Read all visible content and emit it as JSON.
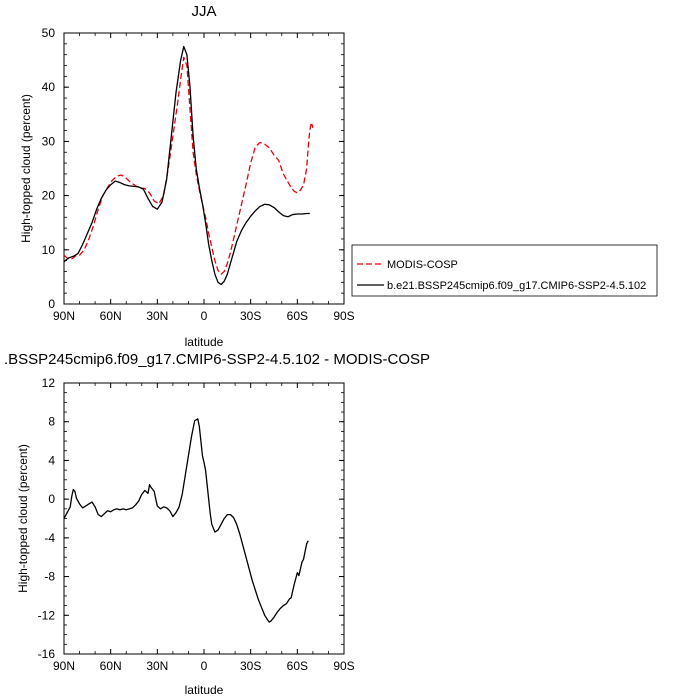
{
  "chart_data": [
    {
      "type": "line",
      "title": "JJA",
      "xlabel": "latitude",
      "ylabel": "High-topped cloud (percent)",
      "xlim": [
        90,
        -90
      ],
      "ylim": [
        0,
        50
      ],
      "x_ticks": [
        90,
        60,
        30,
        0,
        -30,
        -60,
        -90
      ],
      "x_tick_labels": [
        "90N",
        "60N",
        "30N",
        "0",
        "30S",
        "60S",
        "90S"
      ],
      "y_ticks": [
        0,
        10,
        20,
        30,
        40,
        50
      ],
      "y_tick_labels": [
        "0",
        "10",
        "20",
        "30",
        "40",
        "50"
      ],
      "legend_position": "right",
      "series": [
        {
          "name": "MODIS-COSP",
          "color": "#e8000b",
          "dash": "dashed",
          "x": [
            90,
            88,
            86,
            84,
            82,
            80,
            77,
            74,
            71,
            68,
            65,
            62,
            59,
            56,
            53,
            50,
            47,
            44,
            41,
            38,
            35,
            32,
            29,
            26,
            23,
            20,
            17,
            15,
            13,
            11,
            9,
            7,
            5,
            3,
            1,
            -1,
            -3,
            -5,
            -7,
            -9,
            -11,
            -13,
            -15,
            -17,
            -19,
            -21,
            -23,
            -25,
            -27,
            -30,
            -33,
            -36,
            -39,
            -42,
            -45,
            -48,
            -51,
            -54,
            -56,
            -58,
            -60,
            -62,
            -64,
            -66,
            -67,
            -68,
            -69,
            -70
          ],
          "y": [
            9,
            8.5,
            8.2,
            8.5,
            9,
            9,
            10,
            12,
            14.5,
            17.5,
            20,
            21.5,
            22.8,
            23.6,
            23.8,
            23.2,
            22.4,
            21.8,
            21.4,
            21.3,
            20.5,
            19,
            18.5,
            20,
            25,
            31,
            37,
            41.5,
            45.5,
            44,
            36,
            28,
            24,
            21,
            18.5,
            16,
            13,
            10.5,
            8,
            6.2,
            5.5,
            6,
            7.5,
            9.5,
            12,
            14.5,
            17,
            19.5,
            22,
            26,
            29,
            29.8,
            29.5,
            28.8,
            27.5,
            26.5,
            24,
            22.5,
            21.5,
            20.8,
            20.5,
            21,
            22,
            25,
            29,
            32,
            33.5,
            32.5
          ]
        },
        {
          "name": "b.e21.BSSP245cmip6.f09_g17.CMIP6-SSP2-4.5.102",
          "color": "#000000",
          "dash": "solid",
          "x": [
            90,
            87,
            84,
            81,
            78,
            75,
            72,
            69,
            66,
            63,
            60,
            57,
            54,
            51,
            48,
            45,
            42,
            39,
            36,
            33,
            30,
            27,
            24,
            21,
            18,
            15,
            13,
            11,
            9,
            7,
            5,
            3,
            1,
            -1,
            -3,
            -5,
            -7,
            -9,
            -11,
            -13,
            -15,
            -17,
            -19,
            -21,
            -24,
            -27,
            -30,
            -33,
            -36,
            -39,
            -42,
            -45,
            -48,
            -51,
            -54,
            -57,
            -60,
            -63,
            -66,
            -68
          ],
          "y": [
            7.8,
            8.5,
            8.8,
            9.3,
            11,
            13,
            15,
            17.5,
            19.5,
            21,
            22,
            22.7,
            22.4,
            22,
            21.8,
            21.7,
            21.6,
            21.2,
            19.5,
            18,
            17.5,
            18.8,
            23,
            31,
            39,
            45,
            47.5,
            46,
            40,
            31,
            25,
            21.5,
            18.5,
            15,
            11,
            8,
            5.5,
            4,
            3.6,
            4.2,
            5.5,
            7.5,
            9.5,
            11.5,
            13.5,
            15,
            16.2,
            17.2,
            18,
            18.4,
            18.3,
            17.8,
            17,
            16.3,
            16.1,
            16.5,
            16.6,
            16.6,
            16.7,
            16.7
          ]
        }
      ]
    },
    {
      "type": "line",
      "title": ".BSSP245cmip6.f09_g17.CMIP6-SSP2-4.5.102 - MODIS-COSP",
      "xlabel": "latitude",
      "ylabel": "High-topped cloud (percent)",
      "xlim": [
        90,
        -90
      ],
      "ylim": [
        -16,
        12
      ],
      "x_ticks": [
        90,
        60,
        30,
        0,
        -30,
        -60,
        -90
      ],
      "x_tick_labels": [
        "90N",
        "60N",
        "30N",
        "0",
        "30S",
        "60S",
        "90S"
      ],
      "y_ticks": [
        -16,
        -12,
        -8,
        -4,
        0,
        4,
        8,
        12
      ],
      "y_tick_labels": [
        "-16",
        "-12",
        "-8",
        "-4",
        "0",
        "4",
        "8",
        "12"
      ],
      "series": [
        {
          "color": "#000000",
          "dash": "solid",
          "x": [
            90,
            88,
            86,
            85,
            84,
            83,
            82,
            80,
            78,
            76,
            74,
            72,
            70,
            68,
            66,
            64,
            62,
            60,
            58,
            56,
            54,
            52,
            50,
            48,
            46,
            44,
            42,
            40,
            38,
            36,
            35,
            34,
            32,
            31,
            30,
            28,
            26,
            24,
            22,
            20,
            18,
            16,
            14,
            12,
            10,
            8,
            6,
            4,
            3,
            2,
            1,
            0,
            -1,
            -2,
            -3,
            -4,
            -5,
            -7,
            -9,
            -11,
            -13,
            -15,
            -17,
            -19,
            -21,
            -23,
            -25,
            -27,
            -29,
            -31,
            -33,
            -35,
            -37,
            -39,
            -41,
            -42,
            -43,
            -45,
            -47,
            -49,
            -51,
            -53,
            -55,
            -56,
            -57,
            -58,
            -59,
            -60,
            -61,
            -62,
            -63,
            -64,
            -65,
            -66,
            -67
          ],
          "y": [
            -2,
            -1.4,
            -0.8,
            0.3,
            1,
            0.8,
            0.1,
            -0.5,
            -0.9,
            -0.7,
            -0.5,
            -0.3,
            -0.8,
            -1.6,
            -1.8,
            -1.5,
            -1.2,
            -1.3,
            -1.1,
            -1.0,
            -1.1,
            -1.0,
            -1.1,
            -1.0,
            -0.9,
            -0.6,
            -0.2,
            0.5,
            0.9,
            0.6,
            1.5,
            1.2,
            0.8,
            0.0,
            -0.7,
            -1.0,
            -0.8,
            -0.9,
            -1.2,
            -1.8,
            -1.4,
            -0.8,
            0.5,
            2.5,
            4.5,
            6.5,
            8.1,
            8.3,
            7.5,
            6,
            4.5,
            3.8,
            3.0,
            1.5,
            0.0,
            -1.5,
            -2.6,
            -3.4,
            -3.2,
            -2.6,
            -2.0,
            -1.6,
            -1.6,
            -1.9,
            -2.6,
            -3.6,
            -4.8,
            -6.0,
            -7.2,
            -8.4,
            -9.4,
            -10.4,
            -11.2,
            -12.0,
            -12.5,
            -12.7,
            -12.6,
            -12.2,
            -11.7,
            -11.3,
            -11.0,
            -10.8,
            -10.3,
            -10.2,
            -9.5,
            -8.8,
            -8.2,
            -7.6,
            -7.9,
            -7.2,
            -6.5,
            -6.2,
            -5.4,
            -4.6,
            -4.3
          ]
        }
      ]
    }
  ]
}
